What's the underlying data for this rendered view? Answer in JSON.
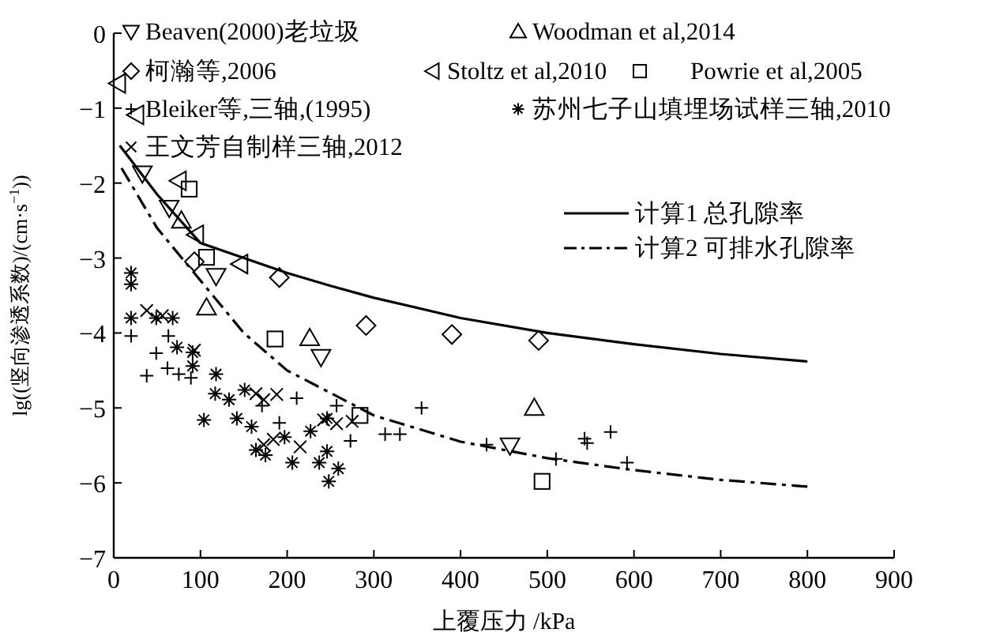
{
  "chart_data": {
    "type": "scatter",
    "xlabel": "上覆压力 /kPa",
    "ylabel": "lg((竖向渗透系数)/(cm·s$^{−1}$))",
    "xlim": [
      0,
      900
    ],
    "xticks": [
      0,
      100,
      200,
      300,
      400,
      500,
      600,
      700,
      800,
      900
    ],
    "ylim": [
      -7,
      0
    ],
    "yticks": [
      {
        "value": -7,
        "label": "−7"
      },
      {
        "value": -6,
        "label": "−6"
      },
      {
        "value": -5,
        "label": "−5"
      },
      {
        "value": -4,
        "label": "−4"
      },
      {
        "value": -3,
        "label": "−3"
      },
      {
        "value": -2,
        "label": "−2"
      },
      {
        "value": -1,
        "label": "−1"
      },
      {
        "value": 0,
        "label": "0"
      }
    ],
    "grid": false,
    "legend": "top",
    "series": [
      {
        "name": "Beaven(2000)老垃圾",
        "color": "#000000",
        "marker": "triangle-down",
        "x": [
          33,
          64,
          118,
          239,
          457
        ],
        "values": [
          -1.87,
          -2.33,
          -3.24,
          -4.32,
          -5.5
        ]
      },
      {
        "name": "Woodman et al,2014",
        "color": "#000000",
        "marker": "triangle",
        "x": [
          78,
          107,
          226,
          485
        ],
        "values": [
          -2.5,
          -3.66,
          -4.07,
          -5.0
        ]
      },
      {
        "name": "柯瀚等,2006",
        "color": "#000000",
        "marker": "diamond",
        "x": [
          93,
          191,
          291,
          390,
          490
        ],
        "values": [
          -3.05,
          -3.26,
          -3.9,
          -4.02,
          -4.1
        ]
      },
      {
        "name": "Stoltz et al,2010",
        "color": "#000000",
        "marker": "triangle-left",
        "x": [
          5,
          26,
          75,
          95,
          146
        ],
        "values": [
          -0.67,
          -1.09,
          -1.97,
          -2.69,
          -3.08
        ]
      },
      {
        "name": "Powrie et al,2005",
        "color": "#000000",
        "marker": "square",
        "x": [
          87,
          107,
          186,
          284,
          494
        ],
        "values": [
          -2.08,
          -2.99,
          -4.08,
          -5.1,
          -5.98
        ]
      },
      {
        "name": "Bleiker等,三轴,(1995)",
        "color": "#000000",
        "marker": "plus",
        "x": [
          20,
          49,
          38,
          62,
          75,
          89,
          63,
          211,
          171,
          191,
          257,
          273,
          313,
          330,
          355,
          430,
          510,
          543,
          546,
          573,
          592
        ],
        "values": [
          -4.04,
          -4.27,
          -4.57,
          -4.47,
          -4.55,
          -4.6,
          -4.04,
          -4.87,
          -4.97,
          -5.2,
          -4.97,
          -5.44,
          -5.35,
          -5.35,
          -5.0,
          -5.49,
          -5.68,
          -5.41,
          -5.47,
          -5.32,
          -5.73
        ]
      },
      {
        "name": "苏州七子山填埋场试样三轴,2010",
        "color": "#000000",
        "x": [
          20,
          20,
          20,
          49,
          68,
          73,
          91,
          91,
          118,
          104,
          117,
          133,
          151,
          142,
          159,
          164,
          175,
          197,
          206,
          227,
          237,
          246,
          248,
          259,
          246
        ],
        "values": [
          -3.2,
          -3.35,
          -3.8,
          -3.8,
          -3.8,
          -4.19,
          -4.26,
          -4.44,
          -4.55,
          -5.16,
          -4.81,
          -4.89,
          -4.76,
          -5.14,
          -5.25,
          -5.56,
          -5.63,
          -5.39,
          -5.73,
          -5.31,
          -5.73,
          -5.58,
          -5.98,
          -5.81,
          -5.14
        ]
      },
      {
        "name": "王文芳自制样三轴,2012",
        "color": "#000000",
        "marker": "cross",
        "x": [
          38,
          56,
          93,
          164,
          188,
          173,
          184,
          173,
          215,
          257,
          275,
          242
        ],
        "values": [
          -3.7,
          -3.77,
          -4.23,
          -4.81,
          -4.82,
          -4.89,
          -5.42,
          -5.49,
          -5.52,
          -5.21,
          -5.18,
          -5.16
        ]
      },
      {
        "name": "计算1 总孔隙率",
        "type": "line",
        "line_style": "solid",
        "color": "#000000",
        "x": [
          7,
          50,
          100,
          150,
          200,
          250,
          300,
          400,
          500,
          600,
          700,
          800
        ],
        "values": [
          -1.5,
          -2.15,
          -2.8,
          -3.0,
          -3.2,
          -3.37,
          -3.53,
          -3.8,
          -4.0,
          -4.15,
          -4.28,
          -4.38
        ]
      },
      {
        "name": "计算2 可排水孔隙率",
        "type": "line",
        "line_style": "dashdot",
        "color": "#000000",
        "x": [
          9,
          50,
          100,
          150,
          200,
          300,
          400,
          500,
          600,
          700,
          800
        ],
        "values": [
          -1.8,
          -2.6,
          -3.3,
          -4.0,
          -4.5,
          -5.1,
          -5.45,
          -5.67,
          -5.83,
          -5.96,
          -6.05
        ]
      }
    ]
  }
}
